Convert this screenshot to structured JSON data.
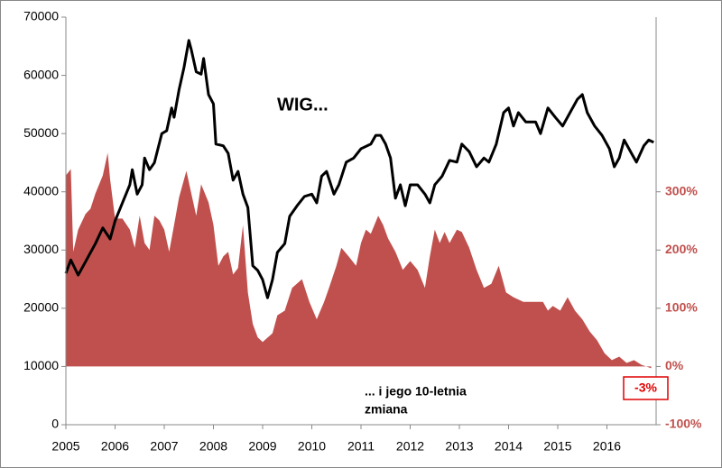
{
  "chart_data": {
    "type": "line_area",
    "annotations": [
      "WIG...",
      "... i jego 10-letnia",
      "zmiana",
      "-3%"
    ],
    "xlim": [
      2005,
      2017
    ],
    "xticks": [
      2005,
      2006,
      2007,
      2008,
      2009,
      2010,
      2011,
      2012,
      2013,
      2014,
      2015,
      2016
    ],
    "ylim": [
      0,
      70000
    ],
    "yticks": [
      0,
      10000,
      20000,
      30000,
      40000,
      50000,
      60000,
      70000
    ],
    "y2lim": [
      -100,
      600
    ],
    "y2ticks": [
      {
        "value": -100,
        "label": "-100%"
      },
      {
        "value": 0,
        "label": "0%"
      },
      {
        "value": 100,
        "label": "100%"
      },
      {
        "value": 200,
        "label": "200%"
      },
      {
        "value": 300,
        "label": "300%"
      }
    ],
    "series": [
      {
        "name": "WIG",
        "kind": "line",
        "color": "#000000",
        "x": [
          2005.0,
          2005.1,
          2005.25,
          2005.4,
          2005.6,
          2005.75,
          2005.9,
          2006.0,
          2006.15,
          2006.3,
          2006.35,
          2006.45,
          2006.55,
          2006.6,
          2006.7,
          2006.8,
          2006.95,
          2007.05,
          2007.15,
          2007.2,
          2007.3,
          2007.4,
          2007.5,
          2007.55,
          2007.65,
          2007.75,
          2007.8,
          2007.9,
          2008.0,
          2008.05,
          2008.2,
          2008.3,
          2008.4,
          2008.5,
          2008.6,
          2008.7,
          2008.8,
          2008.9,
          2009.0,
          2009.1,
          2009.2,
          2009.3,
          2009.45,
          2009.55,
          2009.7,
          2009.85,
          2010.0,
          2010.1,
          2010.2,
          2010.3,
          2010.45,
          2010.55,
          2010.7,
          2010.85,
          2011.0,
          2011.2,
          2011.3,
          2011.4,
          2011.5,
          2011.6,
          2011.7,
          2011.8,
          2011.9,
          2012.0,
          2012.15,
          2012.3,
          2012.4,
          2012.5,
          2012.65,
          2012.8,
          2012.95,
          2013.05,
          2013.2,
          2013.35,
          2013.5,
          2013.6,
          2013.75,
          2013.9,
          2014.0,
          2014.1,
          2014.2,
          2014.35,
          2014.55,
          2014.65,
          2014.8,
          2014.95,
          2015.1,
          2015.25,
          2015.4,
          2015.5,
          2015.6,
          2015.75,
          2015.9,
          2016.05,
          2016.15,
          2016.25,
          2016.35,
          2016.5,
          2016.6,
          2016.75,
          2016.85,
          2016.95
        ],
        "values": [
          26000,
          28300,
          25700,
          28000,
          31100,
          33800,
          31900,
          35000,
          38100,
          41200,
          43800,
          39600,
          41200,
          45800,
          43800,
          45000,
          50000,
          50500,
          54400,
          52800,
          57500,
          61300,
          66000,
          64400,
          60600,
          60200,
          62900,
          56700,
          55100,
          48200,
          47900,
          46600,
          42000,
          43500,
          39600,
          37300,
          27300,
          26500,
          24900,
          21800,
          24900,
          29600,
          31100,
          35800,
          37600,
          39200,
          39600,
          38100,
          42700,
          43500,
          39600,
          41200,
          45100,
          45800,
          47400,
          48200,
          49700,
          49700,
          48200,
          45800,
          38900,
          41200,
          37600,
          41200,
          41200,
          39600,
          38100,
          41200,
          42700,
          45400,
          45100,
          48200,
          46900,
          44300,
          45800,
          45100,
          48200,
          53600,
          54400,
          51300,
          53600,
          52000,
          52000,
          50000,
          54400,
          52800,
          51300,
          53600,
          55900,
          56700,
          53600,
          51300,
          49700,
          47400,
          44300,
          45800,
          48900,
          46600,
          45100,
          47900,
          48900,
          48500
        ]
      },
      {
        "name": "10-letnia zmiana",
        "kind": "area",
        "axis": "y2",
        "color": "#c0504d",
        "x": [
          2005.0,
          2005.1,
          2005.15,
          2005.25,
          2005.4,
          2005.5,
          2005.6,
          2005.75,
          2005.85,
          2005.9,
          2006.0,
          2006.15,
          2006.3,
          2006.4,
          2006.5,
          2006.6,
          2006.7,
          2006.8,
          2006.9,
          2007.0,
          2007.1,
          2007.2,
          2007.3,
          2007.45,
          2007.55,
          2007.65,
          2007.75,
          2007.9,
          2008.0,
          2008.1,
          2008.2,
          2008.3,
          2008.4,
          2008.5,
          2008.6,
          2008.7,
          2008.8,
          2008.9,
          2009.0,
          2009.2,
          2009.3,
          2009.45,
          2009.6,
          2009.8,
          2009.95,
          2010.1,
          2010.25,
          2010.35,
          2010.5,
          2010.6,
          2010.75,
          2010.9,
          2011.0,
          2011.1,
          2011.2,
          2011.35,
          2011.45,
          2011.55,
          2011.7,
          2011.85,
          2012.0,
          2012.15,
          2012.3,
          2012.4,
          2012.5,
          2012.6,
          2012.7,
          2012.8,
          2012.95,
          2013.05,
          2013.2,
          2013.35,
          2013.5,
          2013.65,
          2013.8,
          2013.95,
          2014.1,
          2014.3,
          2014.5,
          2014.7,
          2014.8,
          2014.9,
          2015.05,
          2015.2,
          2015.35,
          2015.5,
          2015.65,
          2015.8,
          2015.95,
          2016.1,
          2016.25,
          2016.4,
          2016.55,
          2016.7,
          2016.9
        ],
        "values": [
          328,
          339,
          197,
          235,
          262,
          271,
          297,
          328,
          367,
          321,
          254,
          254,
          235,
          204,
          259,
          212,
          200,
          259,
          251,
          235,
          197,
          243,
          290,
          336,
          297,
          259,
          313,
          282,
          243,
          173,
          189,
          197,
          158,
          169,
          243,
          127,
          73,
          50,
          42,
          57,
          88,
          96,
          135,
          150,
          111,
          81,
          111,
          135,
          173,
          204,
          189,
          173,
          212,
          235,
          228,
          259,
          243,
          220,
          197,
          166,
          181,
          166,
          135,
          189,
          235,
          212,
          231,
          212,
          235,
          231,
          204,
          166,
          135,
          142,
          173,
          127,
          119,
          111,
          111,
          111,
          96,
          104,
          96,
          119,
          96,
          81,
          60,
          45,
          23,
          11,
          17,
          6,
          11,
          3,
          -3
        ]
      }
    ]
  }
}
